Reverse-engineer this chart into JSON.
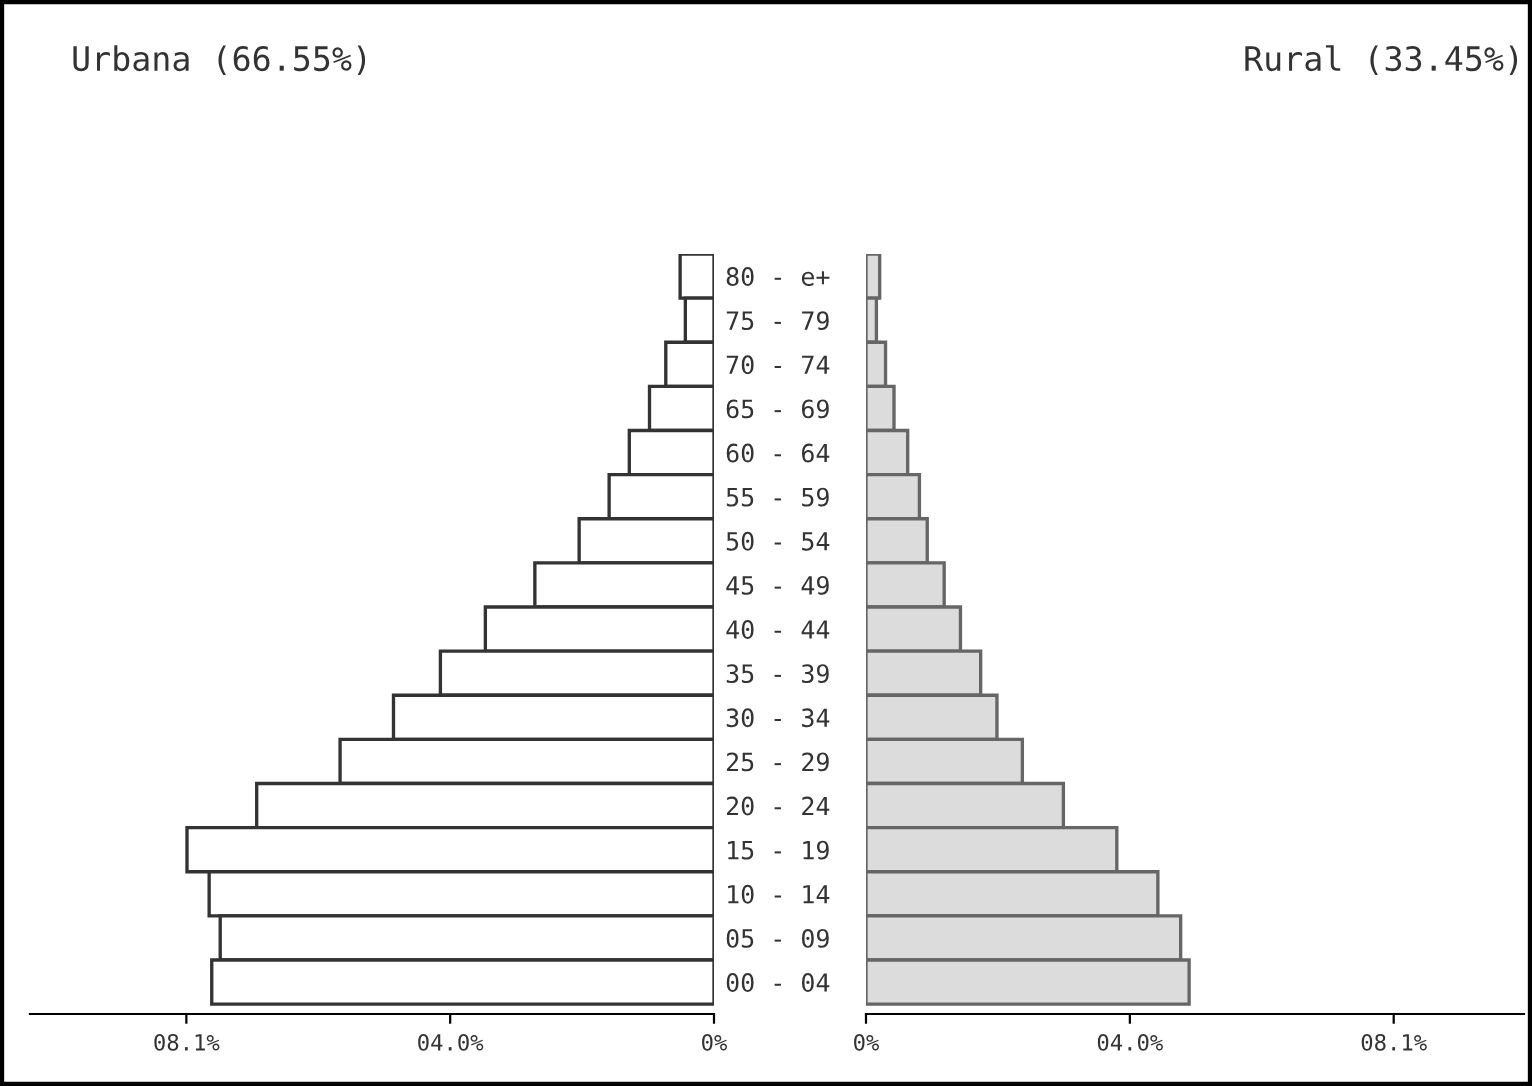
{
  "chart_data": [
    {
      "type": "bar",
      "orientation": "horizontal",
      "title": "Urbana (66.55%)",
      "categories": [
        "80 - e+",
        "75 - 79",
        "70 - 74",
        "65 - 69",
        "60 - 64",
        "55 - 59",
        "50 - 54",
        "45 - 49",
        "40 - 44",
        "35 - 39",
        "30 - 34",
        "25 - 29",
        "20 - 24",
        "15 - 19",
        "10 - 14",
        "05 - 09",
        "00 - 04"
      ],
      "values": [
        0.52,
        0.44,
        0.74,
        0.99,
        1.3,
        1.61,
        2.07,
        2.75,
        3.51,
        4.2,
        4.92,
        5.74,
        7.02,
        8.09,
        7.75,
        7.58,
        7.71
      ],
      "color": "#ffffff",
      "xlim": [
        10.5,
        0
      ],
      "xticks": [
        {
          "value": 8.1,
          "label": "08.1%"
        },
        {
          "value": 4.05,
          "label": "04.0%"
        },
        {
          "value": 0,
          "label": "0%"
        }
      ],
      "grid": false,
      "legend": false
    },
    {
      "type": "bar",
      "orientation": "horizontal",
      "title": "Rural (33.45%)",
      "categories": [
        null,
        null,
        null,
        null,
        null,
        null,
        null,
        null,
        null,
        null,
        null,
        null,
        null,
        null,
        null,
        null,
        null
      ],
      "values": [
        0.21,
        0.16,
        0.3,
        0.43,
        0.64,
        0.82,
        0.94,
        1.2,
        1.45,
        1.76,
        2.01,
        2.4,
        3.03,
        3.85,
        4.48,
        4.83,
        4.96
      ],
      "color": "#dcdcdc",
      "xlim": [
        0,
        10.1
      ],
      "xticks": [
        {
          "value": 0,
          "label": "0%"
        },
        {
          "value": 4.05,
          "label": "04.0%"
        },
        {
          "value": 8.1,
          "label": "08.1%"
        }
      ],
      "tick_labels": "x",
      "grid": false,
      "legend": false
    }
  ]
}
